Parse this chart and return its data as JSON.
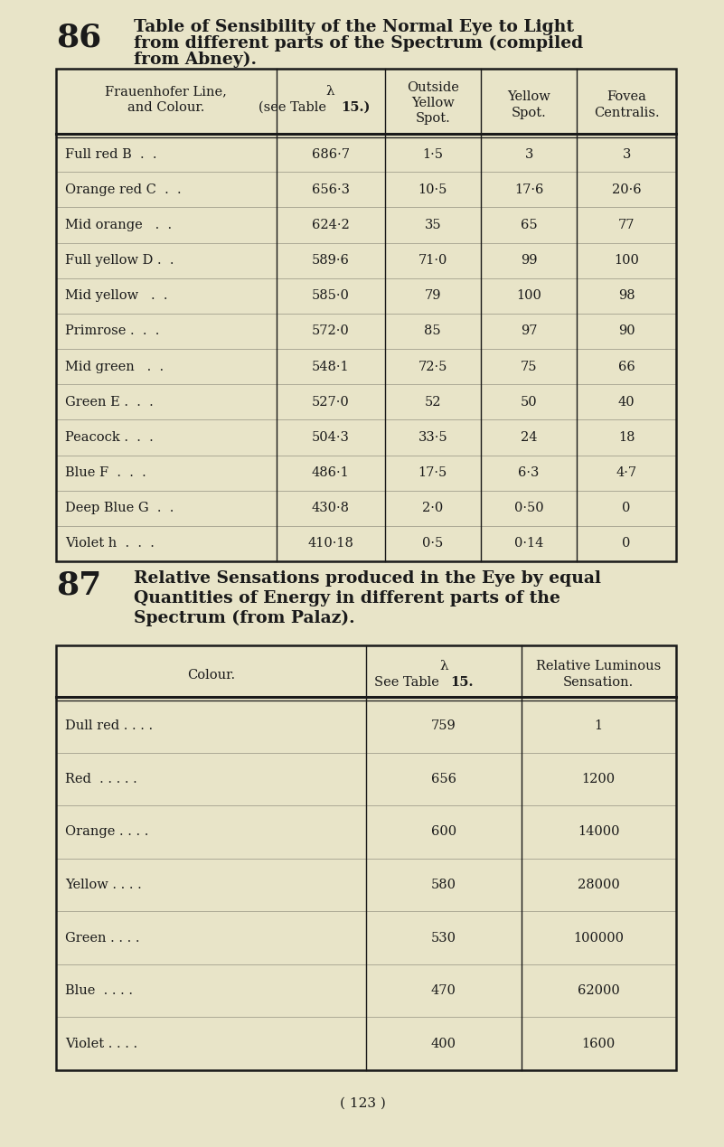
{
  "bg_color": "#e8e4c8",
  "text_color": "#1a1a1a",
  "page_number": "( 123 )",
  "section86": {
    "number": "86",
    "title_line1": "Table of Sensibility of the Normal Eye to Light",
    "title_line2": "from different parts of the Spectrum (compiled",
    "title_line3": "from Abney)."
  },
  "table1": {
    "col0_header1": "Frauenhofer Line,",
    "col0_header2": "and Colour.",
    "col1_header1": "λ",
    "col1_header2": "(see Table 15.)",
    "col2_header1": "Outside",
    "col2_header2": "Yellow",
    "col2_header3": "Spot.",
    "col3_header1": "Yellow",
    "col3_header2": "Spot.",
    "col4_header1": "Fovea",
    "col4_header2": "Centralis.",
    "rows": [
      [
        "Full red B  .  .",
        "686·7",
        "1·5",
        "3",
        "3"
      ],
      [
        "Orange red C  .  .",
        "656·3",
        "10·5",
        "17·6",
        "20·6"
      ],
      [
        "Mid orange   .  .",
        "624·2",
        "35",
        "65",
        "77"
      ],
      [
        "Full yellow D .  .",
        "589·6",
        "71·0",
        "99",
        "100"
      ],
      [
        "Mid yellow   .  .",
        "585·0",
        "79",
        "100",
        "98"
      ],
      [
        "Primrose .  .  .",
        "572·0",
        "85",
        "97",
        "90"
      ],
      [
        "Mid green   .  .",
        "548·1",
        "72·5",
        "75",
        "66"
      ],
      [
        "Green E .  .  .",
        "527·0",
        "52",
        "50",
        "40"
      ],
      [
        "Peacock .  .  .",
        "504·3",
        "33·5",
        "24",
        "18"
      ],
      [
        "Blue F  .  .  .",
        "486·1",
        "17·5",
        "6·3",
        "4·7"
      ],
      [
        "Deep Blue G  .  .",
        "430·8",
        "2·0",
        "0·50",
        "0"
      ],
      [
        "Violet h  .  .  .",
        "410·18",
        "0·5",
        "0·14",
        "0"
      ]
    ]
  },
  "section87": {
    "number": "87",
    "title_line1": "Relative Sensations produced in the Eye by equal",
    "title_line2": "Quantities of Energy in different parts of the",
    "title_line3": "Spectrum (from Palaz)."
  },
  "table2": {
    "col0_header": "Colour.",
    "col1_header1": "λ",
    "col1_header2": "See Table 15.",
    "col2_header1": "Relative Luminous",
    "col2_header2": "Sensation.",
    "rows": [
      [
        "Dull red . . . .",
        "759",
        "1"
      ],
      [
        "Red  . . . . .",
        "656",
        "1200"
      ],
      [
        "Orange . . . .",
        "600",
        "14000"
      ],
      [
        "Yellow . . . .",
        "580",
        "28000"
      ],
      [
        "Green . . . .",
        "530",
        "100000"
      ],
      [
        "Blue  . . . .",
        "470",
        "62000"
      ],
      [
        "Violet . . . .",
        "400",
        "1600"
      ]
    ]
  }
}
